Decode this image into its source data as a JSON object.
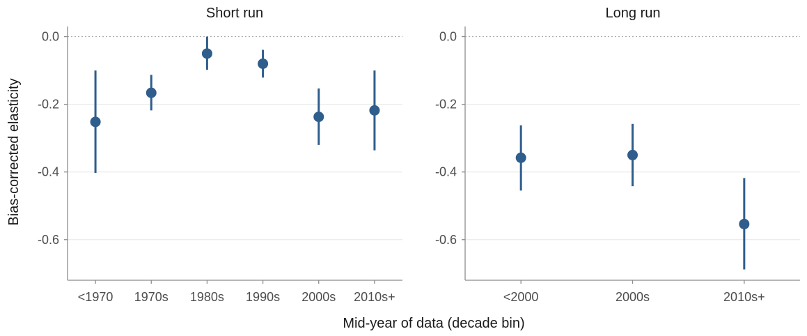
{
  "chart_data": [
    {
      "type": "scatter",
      "panel": "left",
      "title": "Short run",
      "categories": [
        "<1970",
        "1970s",
        "1980s",
        "1990s",
        "2000s",
        "2010s+"
      ],
      "series": [
        {
          "values": [
            -0.252,
            -0.166,
            -0.05,
            -0.08,
            -0.237,
            -0.218
          ],
          "lower": [
            -0.403,
            -0.218,
            -0.098,
            -0.121,
            -0.32,
            -0.336
          ],
          "upper": [
            -0.1,
            -0.113,
            0.0,
            -0.039,
            -0.153,
            -0.1
          ]
        }
      ],
      "ylabel": "Bias-corrected elasticity",
      "ylim": [
        -0.72,
        0.03
      ],
      "yticks": [
        0.0,
        -0.2,
        -0.4,
        -0.6
      ],
      "ytick_labels": [
        "0.0",
        "-0.2",
        "-0.4",
        "-0.6"
      ],
      "reference_line": 0.0,
      "grid": true
    },
    {
      "type": "scatter",
      "panel": "right",
      "title": "Long run",
      "categories": [
        "<2000",
        "2000s",
        "2010s+"
      ],
      "series": [
        {
          "values": [
            -0.358,
            -0.35,
            -0.554
          ],
          "lower": [
            -0.455,
            -0.442,
            -0.688
          ],
          "upper": [
            -0.262,
            -0.258,
            -0.418
          ]
        }
      ],
      "ylim": [
        -0.72,
        0.03
      ],
      "yticks": [
        0.0,
        -0.2,
        -0.4,
        -0.6
      ],
      "ytick_labels": [
        "0.0",
        "-0.2",
        "-0.4",
        "-0.6"
      ],
      "reference_line": 0.0,
      "grid": true
    }
  ],
  "xlabel": "Mid-year of data (decade bin)",
  "colors": {
    "point": "#2f5d8c",
    "grid": "#e6e6e6",
    "axis": "#8c8c8c"
  }
}
